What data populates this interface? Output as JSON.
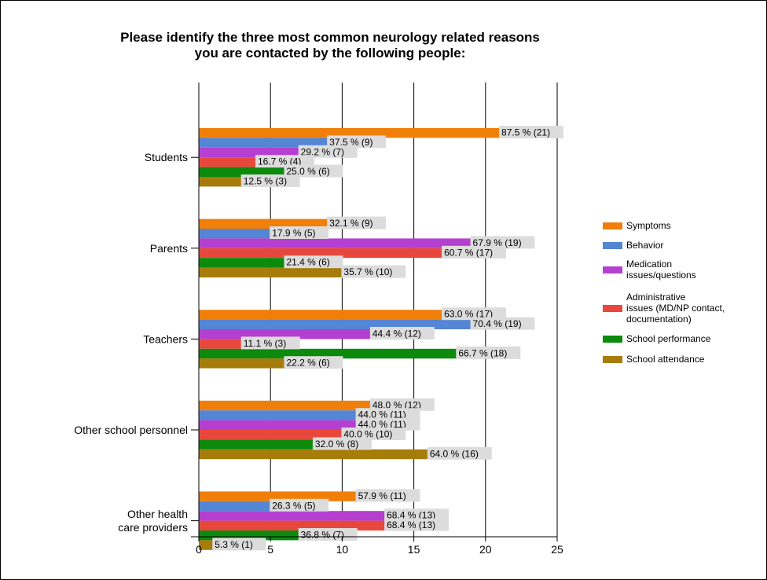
{
  "chart_data": {
    "type": "bar",
    "orientation": "horizontal",
    "title": "Please identify the three most common neurology related reasons\nyou are contacted by the following people:",
    "categories": [
      "Students",
      "Parents",
      "Teachers",
      "Other school personnel",
      "Other health\ncare providers"
    ],
    "xlim": [
      0,
      25
    ],
    "xticks": [
      0,
      5,
      10,
      15,
      20,
      25
    ],
    "grid": true,
    "legend_position": "right",
    "series": [
      {
        "name": "Symptoms",
        "color": "#F07F09",
        "values": [
          21,
          9,
          17,
          12,
          11
        ],
        "labels": [
          "87.5 % (21)",
          "32.1 % (9)",
          "63.0 % (17)",
          "48.0 % (12)",
          "57.9 % (11)"
        ]
      },
      {
        "name": "Behavior",
        "color": "#5585D5",
        "values": [
          9,
          5,
          19,
          11,
          5
        ],
        "labels": [
          "37.5 % (9)",
          "17.9 % (5)",
          "70.4 % (19)",
          "44.0 % (11)",
          "26.3 % (5)"
        ]
      },
      {
        "name": "Medication\nissues/questions",
        "color": "#B53FD0",
        "values": [
          7,
          19,
          12,
          11,
          13
        ],
        "labels": [
          "29.2 % (7)",
          "67.9 % (19)",
          "44.4 % (12)",
          "44.0 % (11)",
          "68.4 % (13)"
        ]
      },
      {
        "name": "Administrative\nissues (MD/NP contact,\ndocumentation)",
        "color": "#E8483B",
        "values": [
          4,
          17,
          3,
          10,
          13
        ],
        "labels": [
          "16.7 % (4)",
          "60.7 % (17)",
          "11.1 % (3)",
          "40.0 % (10)",
          "68.4 % (13)"
        ]
      },
      {
        "name": "School performance",
        "color": "#0C8A0C",
        "values": [
          6,
          6,
          18,
          8,
          7
        ],
        "labels": [
          "25.0 % (6)",
          "21.4 % (6)",
          "66.7 % (18)",
          "32.0 % (8)",
          "36.8 % (7)"
        ]
      },
      {
        "name": "School attendance",
        "color": "#A67C0A",
        "values": [
          3,
          10,
          6,
          16,
          1
        ],
        "labels": [
          "12.5 % (3)",
          "35.7 % (10)",
          "22.2 % (6)",
          "64.0 % (16)",
          "5.3 % (1)"
        ]
      }
    ]
  }
}
